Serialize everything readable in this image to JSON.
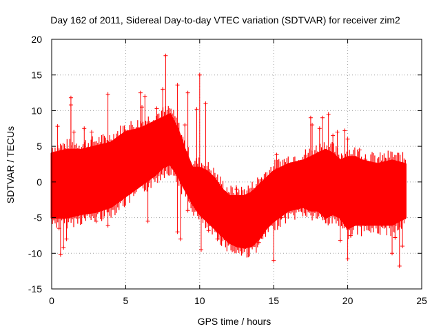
{
  "chart_data": {
    "type": "scatter",
    "title": "Day 162 of 2011, Sidereal Day-to-day VTEC variation (SDTVAR) for receiver zim2",
    "xlabel": "GPS time / hours",
    "ylabel": "SDTVAR / TECUs",
    "xlim": [
      0,
      25
    ],
    "ylim": [
      -15,
      20
    ],
    "xticks": [
      0,
      5,
      10,
      15,
      20,
      25
    ],
    "yticks": [
      -15,
      -10,
      -5,
      0,
      5,
      10,
      15,
      20
    ],
    "grid": true,
    "marker": "+",
    "color": "#ff0000",
    "band": {
      "description": "dense band of observations (lower and upper envelope in TECU vs hours)",
      "x": [
        0.0,
        1.0,
        2.0,
        3.0,
        4.0,
        5.0,
        6.0,
        7.0,
        7.5,
        8.0,
        8.5,
        9.0,
        9.5,
        10.0,
        10.5,
        11.0,
        11.5,
        12.0,
        12.5,
        13.0,
        13.5,
        14.0,
        14.5,
        15.0,
        16.0,
        17.0,
        17.5,
        18.0,
        18.5,
        19.0,
        19.5,
        20.0,
        20.5,
        21.0,
        22.0,
        23.0,
        23.9
      ],
      "lower": [
        -5.0,
        -5.0,
        -4.5,
        -4.2,
        -3.5,
        -2.0,
        -0.5,
        1.0,
        2.0,
        2.5,
        1.0,
        -1.0,
        -3.0,
        -4.5,
        -5.5,
        -6.5,
        -7.5,
        -8.5,
        -9.0,
        -9.2,
        -9.0,
        -8.0,
        -6.5,
        -5.5,
        -4.0,
        -3.5,
        -4.0,
        -4.0,
        -5.0,
        -4.5,
        -5.0,
        -6.5,
        -6.0,
        -6.0,
        -6.0,
        -6.0,
        -5.0
      ],
      "upper": [
        4.0,
        4.5,
        4.5,
        5.0,
        5.5,
        7.0,
        7.5,
        8.5,
        9.0,
        9.5,
        7.5,
        4.5,
        2.0,
        2.0,
        1.5,
        0.5,
        -1.0,
        -2.0,
        -2.0,
        -2.0,
        -1.5,
        -0.5,
        0.5,
        1.5,
        2.5,
        3.0,
        3.5,
        4.0,
        4.5,
        4.0,
        3.0,
        3.5,
        3.5,
        3.0,
        2.5,
        3.0,
        2.5
      ]
    },
    "outliers": [
      {
        "x": 0.4,
        "y": 7.8
      },
      {
        "x": 0.5,
        "y": -6.5
      },
      {
        "x": 0.6,
        "y": -10.2
      },
      {
        "x": 0.8,
        "y": -9.2
      },
      {
        "x": 1.0,
        "y": -8.0
      },
      {
        "x": 1.3,
        "y": 11.8
      },
      {
        "x": 1.3,
        "y": 10.8
      },
      {
        "x": 1.5,
        "y": 7.0
      },
      {
        "x": 2.2,
        "y": 7.5
      },
      {
        "x": 2.7,
        "y": 7.0
      },
      {
        "x": 3.0,
        "y": -5.5
      },
      {
        "x": 3.8,
        "y": 12.3
      },
      {
        "x": 3.8,
        "y": -6.1
      },
      {
        "x": 6.0,
        "y": 12.5
      },
      {
        "x": 6.1,
        "y": 10.5
      },
      {
        "x": 6.3,
        "y": 12.0
      },
      {
        "x": 6.5,
        "y": -5.5
      },
      {
        "x": 7.1,
        "y": 10.3
      },
      {
        "x": 7.5,
        "y": 13.0
      },
      {
        "x": 7.7,
        "y": 17.7
      },
      {
        "x": 8.5,
        "y": 13.6
      },
      {
        "x": 8.5,
        "y": -7.0
      },
      {
        "x": 8.7,
        "y": -8.0
      },
      {
        "x": 9.0,
        "y": 8.0
      },
      {
        "x": 9.2,
        "y": 12.5
      },
      {
        "x": 9.2,
        "y": -4.0
      },
      {
        "x": 9.6,
        "y": -3.0
      },
      {
        "x": 9.8,
        "y": 10.2
      },
      {
        "x": 10.0,
        "y": 15.0
      },
      {
        "x": 10.1,
        "y": -9.5
      },
      {
        "x": 10.4,
        "y": 11.0
      },
      {
        "x": 10.6,
        "y": -6.8
      },
      {
        "x": 11.2,
        "y": -8.0
      },
      {
        "x": 12.5,
        "y": -1.0
      },
      {
        "x": 14.0,
        "y": -8.5
      },
      {
        "x": 15.0,
        "y": -11.0
      },
      {
        "x": 15.5,
        "y": -5.0
      },
      {
        "x": 15.2,
        "y": 3.8
      },
      {
        "x": 17.5,
        "y": 9.0
      },
      {
        "x": 17.6,
        "y": 8.0
      },
      {
        "x": 18.1,
        "y": 7.5
      },
      {
        "x": 18.3,
        "y": 9.0
      },
      {
        "x": 18.7,
        "y": 9.5
      },
      {
        "x": 19.0,
        "y": 6.5
      },
      {
        "x": 19.3,
        "y": 7.0
      },
      {
        "x": 19.5,
        "y": -8.2
      },
      {
        "x": 19.8,
        "y": 7.2
      },
      {
        "x": 20.0,
        "y": -10.8
      },
      {
        "x": 20.0,
        "y": 6.0
      },
      {
        "x": 20.2,
        "y": -7.5
      },
      {
        "x": 20.8,
        "y": 4.5
      },
      {
        "x": 21.5,
        "y": -5.5
      },
      {
        "x": 23.0,
        "y": -10.0
      },
      {
        "x": 23.2,
        "y": -7.8
      },
      {
        "x": 23.5,
        "y": -11.8
      },
      {
        "x": 23.7,
        "y": -9.0
      }
    ]
  }
}
